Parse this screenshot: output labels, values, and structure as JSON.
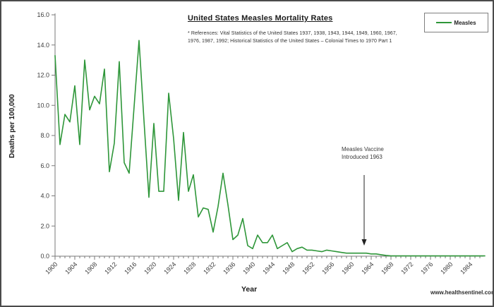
{
  "page": {
    "watermark": "www.healthsentinel.com"
  },
  "chart_data": {
    "type": "line",
    "title": "United States Measles Mortality Rates",
    "references": "* References: Vital Statistics of the United States 1937, 1938, 1943, 1944, 1949, 1960, 1967,\n1976, 1987, 1992; Historical Statistics of the United States – Colonial Times to 1970 Part 1",
    "xlabel": "Year",
    "ylabel": "Deaths per 100,000",
    "ylim": [
      0,
      16
    ],
    "ytick_labels": [
      "0.0",
      "2.0",
      "4.0",
      "6.0",
      "8.0",
      "10.0",
      "12.0",
      "14.0",
      "16.0"
    ],
    "xtick_major_years": [
      1900,
      1904,
      1908,
      1912,
      1916,
      1920,
      1924,
      1928,
      1932,
      1936,
      1940,
      1944,
      1948,
      1952,
      1956,
      1960,
      1964,
      1968,
      1972,
      1976,
      1980,
      1984
    ],
    "x_minor_step": 1,
    "x_start": 1900,
    "x_end": 1987,
    "grid": false,
    "legend": {
      "label": "Measles",
      "position": "top-right"
    },
    "line_color": "#2e9639",
    "axis_color": "#7a7a7a",
    "annotation": {
      "text": "Measles Vaccine\nIntroduced 1963",
      "arrow_year": 1963
    },
    "series": [
      {
        "name": "Measles",
        "x_start": 1900,
        "values": [
          13.3,
          7.4,
          9.4,
          8.9,
          11.3,
          7.4,
          13.0,
          9.7,
          10.6,
          10.1,
          12.4,
          5.6,
          7.5,
          12.9,
          6.2,
          5.5,
          9.9,
          14.3,
          9.0,
          3.9,
          8.8,
          4.3,
          4.3,
          10.8,
          7.8,
          3.7,
          8.2,
          4.3,
          5.4,
          2.6,
          3.2,
          3.1,
          1.6,
          3.3,
          5.5,
          3.4,
          1.1,
          1.4,
          2.5,
          0.7,
          0.5,
          1.4,
          0.9,
          0.9,
          1.4,
          0.5,
          0.7,
          0.9,
          0.3,
          0.5,
          0.6,
          0.4,
          0.4,
          0.35,
          0.3,
          0.4,
          0.35,
          0.3,
          0.25,
          0.2,
          0.2,
          0.2,
          0.2,
          0.2,
          0.15,
          0.15,
          0.1,
          0.05,
          0.02,
          0.02,
          0.02,
          0.02,
          0.02,
          0.02,
          0.02,
          0.02,
          0.02,
          0.02,
          0.02,
          0.02,
          0.02,
          0.02,
          0.02,
          0.02,
          0.02,
          0.02,
          0.02,
          0.02
        ]
      }
    ]
  }
}
